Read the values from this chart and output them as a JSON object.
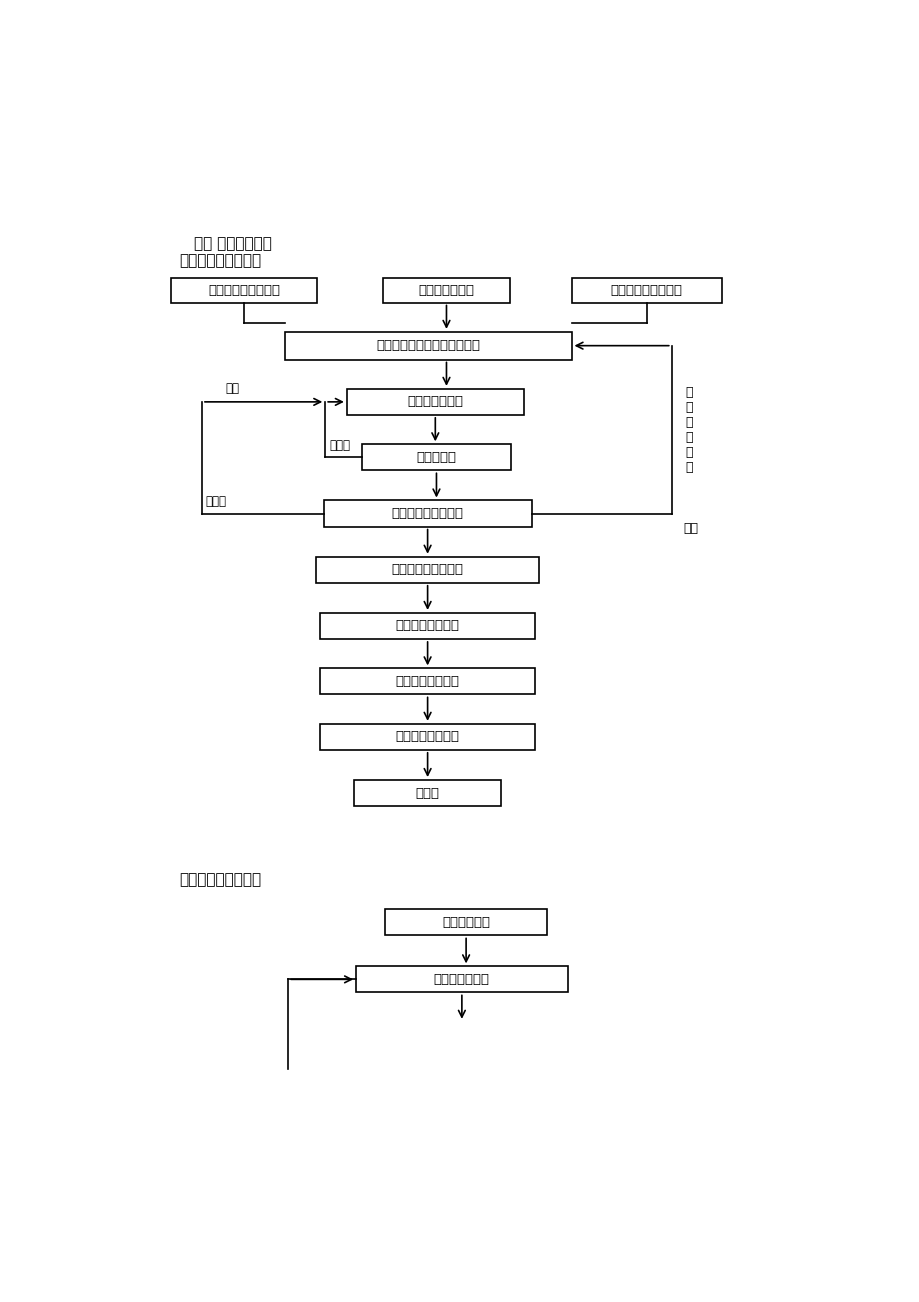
{
  "bg_color": "#ffffff",
  "title1": "二、 监理工作流程",
  "title2": "〔一〕质量控制程序",
  "title3": "〔二〕计量支付程序",
  "fontsize": 10,
  "fontsize_title": 11,
  "fontsize_small": 8.5,
  "fontsize_side": 9
}
